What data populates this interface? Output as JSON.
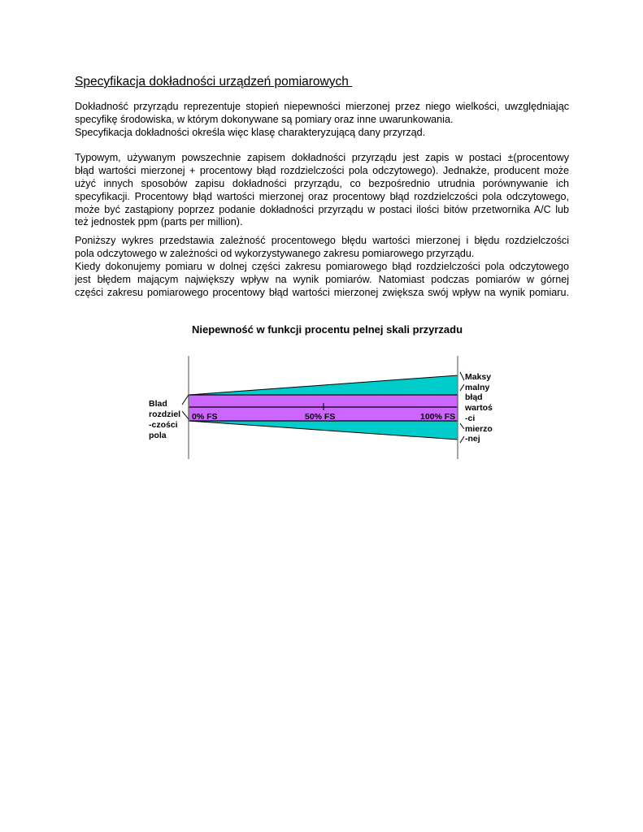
{
  "title": "Specyfikacja dokładności urządzeń pomiarowych ",
  "paragraphs": [
    {
      "lines": [
        {
          "text": "Dokładność przyrządu reprezentuje stopień niepewności mierzonej przez niego wielkości, uwzględniając",
          "justify": true
        },
        {
          "text": "specyfikę środowiska, w którym dokonywane są pomiary oraz inne uwarunkowania.",
          "justify": false
        },
        {
          "text": "Specyfikacja dokładności określa więc klasę charakteryzującą dany przyrząd.",
          "justify": false
        }
      ]
    },
    {
      "lines": [
        {
          "text": "Typowym, używanym powszechnie zapisem dokładności przyrządu jest zapis w postaci ±(procentowy",
          "justify": true
        },
        {
          "text": "błąd wartości mierzonej + procentowy błąd rozdzielczości pola odczytowego). Jednakże, producent może",
          "justify": true
        },
        {
          "text": "użyć innych sposobów zapisu dokładności przyrządu, co bezpośrednio utrudnia porównywanie ich",
          "justify": true
        },
        {
          "text": "specyfikacji. Procentowy błąd wartości mierzonej oraz procentowy błąd rozdzielczości pola odczytowego,",
          "justify": true
        },
        {
          "text": "może być zastąpiony poprzez podanie dokładności przyrządu w postaci ilości bitów przetwornika A/C lub",
          "justify": true
        },
        {
          "text": "też jednostek ppm (parts per million).",
          "justify": false
        }
      ]
    },
    {
      "lines": [
        {
          "text": "Poniższy wykres przedstawia zależność procentowego błędu wartości mierzonej i błędu rozdzielczości",
          "justify": true
        },
        {
          "text": "pola odczytowego w zależności od wykorzystywanego zakresu pomiarowego przyrządu.",
          "justify": false
        },
        {
          "text": "Kiedy dokonujemy pomiaru w dolnej części zakresu pomiarowego błąd rozdzielczości pola odczytowego",
          "justify": true
        },
        {
          "text": "jest błędem mającym największy wpływ na wynik pomiarów. Natomiast podczas pomiarów w górnej",
          "justify": true
        },
        {
          "text": "części zakresu pomiarowego procentowy błąd wartości mierzonej zwiększa swój wpływ na wynik pomiaru.",
          "justify": true
        }
      ]
    }
  ],
  "diagram": {
    "title": "Niepewność w funkcji procentu pelnej skali przyrzadu",
    "left_label": [
      "Blad",
      "rozdziel",
      "-czości",
      "pola"
    ],
    "right_label": [
      "Maksy",
      "malny",
      "błąd",
      "wartoś",
      "-ci",
      "mierzo",
      "-nej"
    ],
    "axis_labels": [
      "0% FS",
      "50% FS",
      "100% FS"
    ],
    "colors": {
      "resolution_band": "#cc66ff",
      "reading_error": "#00cccc",
      "lines": "#000000"
    }
  }
}
